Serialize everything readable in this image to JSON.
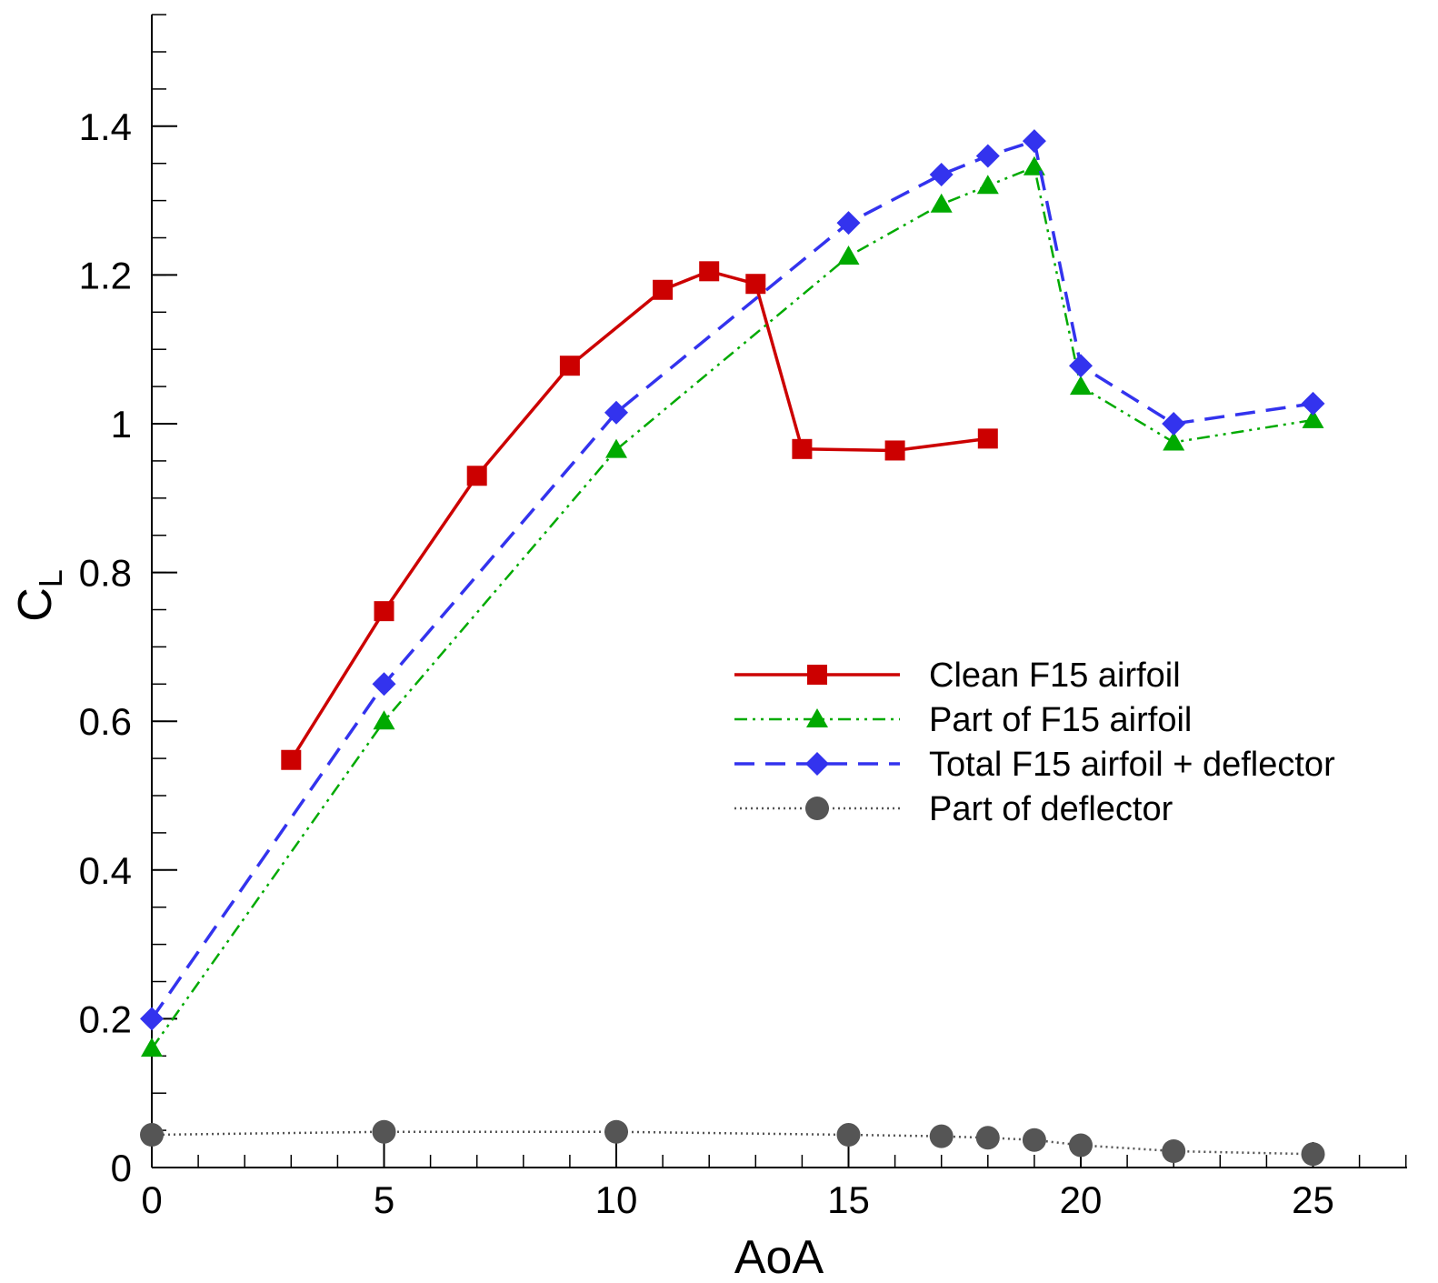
{
  "chart_data": {
    "type": "line",
    "title": "",
    "xlabel": "AoA",
    "ylabel": "C",
    "ylabel_subscript": "L",
    "xlim": [
      0,
      27
    ],
    "ylim": [
      0,
      1.55
    ],
    "x_ticks": [
      0,
      5,
      10,
      15,
      20,
      25
    ],
    "x_tick_labels": [
      "0",
      "5",
      "10",
      "15",
      "20",
      "25"
    ],
    "y_ticks": [
      0,
      0.2,
      0.4,
      0.6,
      0.8,
      1.0,
      1.2,
      1.4
    ],
    "y_tick_labels": [
      "0",
      "0.2",
      "0.4",
      "0.6",
      "0.8",
      "1",
      "1.2",
      "1.4"
    ],
    "minor_y_step": 0.05,
    "minor_x_step": 1,
    "legend_position": "center-right",
    "series": [
      {
        "name": "Clean F15 airfoil",
        "color": "#cc0000",
        "marker": "square",
        "dash": "solid",
        "x": [
          3,
          5,
          7,
          9,
          11,
          12,
          13,
          14,
          16,
          18
        ],
        "y": [
          0.548,
          0.748,
          0.93,
          1.078,
          1.18,
          1.205,
          1.188,
          0.966,
          0.964,
          0.98
        ]
      },
      {
        "name": "Part of F15 airfoil",
        "color": "#00aa00",
        "marker": "triangle",
        "dash": "dashdotdot",
        "x": [
          0,
          5,
          10,
          15,
          17,
          18,
          19,
          20,
          22,
          25
        ],
        "y": [
          0.16,
          0.6,
          0.965,
          1.225,
          1.295,
          1.32,
          1.345,
          1.05,
          0.975,
          1.005
        ]
      },
      {
        "name": "Total F15 airfoil + deflector",
        "color": "#3333ee",
        "marker": "diamond",
        "dash": "dashed",
        "x": [
          0,
          5,
          10,
          15,
          17,
          18,
          19,
          20,
          22,
          25
        ],
        "y": [
          0.2,
          0.65,
          1.015,
          1.27,
          1.335,
          1.36,
          1.38,
          1.078,
          1.0,
          1.027
        ]
      },
      {
        "name": "Part of deflector",
        "color": "#555555",
        "marker": "circle",
        "dash": "dotted",
        "x": [
          0,
          5,
          10,
          15,
          17,
          18,
          19,
          20,
          22,
          25
        ],
        "y": [
          0.044,
          0.048,
          0.048,
          0.044,
          0.042,
          0.04,
          0.037,
          0.03,
          0.022,
          0.018
        ]
      }
    ]
  }
}
